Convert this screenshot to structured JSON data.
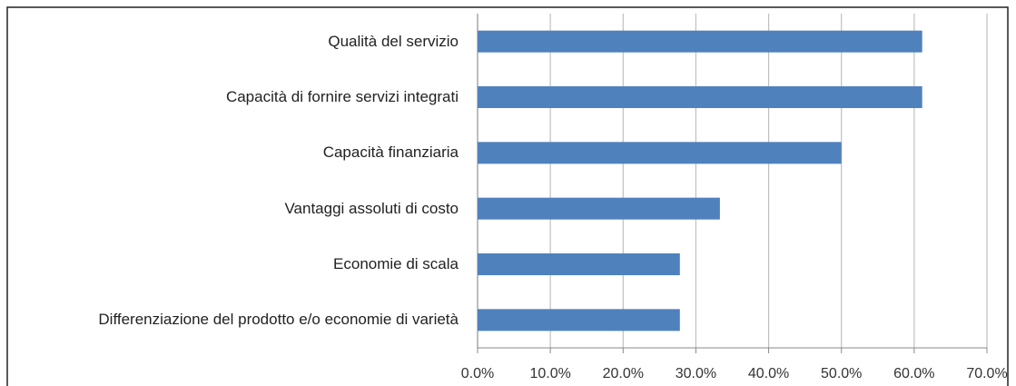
{
  "chart_data": {
    "type": "bar",
    "orientation": "horizontal",
    "categories": [
      "Qualità del servizio",
      "Capacità di fornire servizi integrati",
      "Capacità finanziaria",
      "Vantaggi assoluti di costo",
      "Economie di scala",
      "Differenziazione del prodotto e/o economie di varietà"
    ],
    "values": [
      61.1,
      61.1,
      50.0,
      33.3,
      27.8,
      27.8
    ],
    "color": "#4f81bd",
    "xlim": [
      0,
      70
    ],
    "xticks": [
      {
        "value": 0,
        "label": "0.0%"
      },
      {
        "value": 10,
        "label": "10.0%"
      },
      {
        "value": 20,
        "label": "20.0%"
      },
      {
        "value": 30,
        "label": "30.0%"
      },
      {
        "value": 40,
        "label": "40.0%"
      },
      {
        "value": 50,
        "label": "50.0%"
      },
      {
        "value": 60,
        "label": "60.0%"
      },
      {
        "value": 70,
        "label": "70.0%"
      }
    ],
    "grid": true
  }
}
